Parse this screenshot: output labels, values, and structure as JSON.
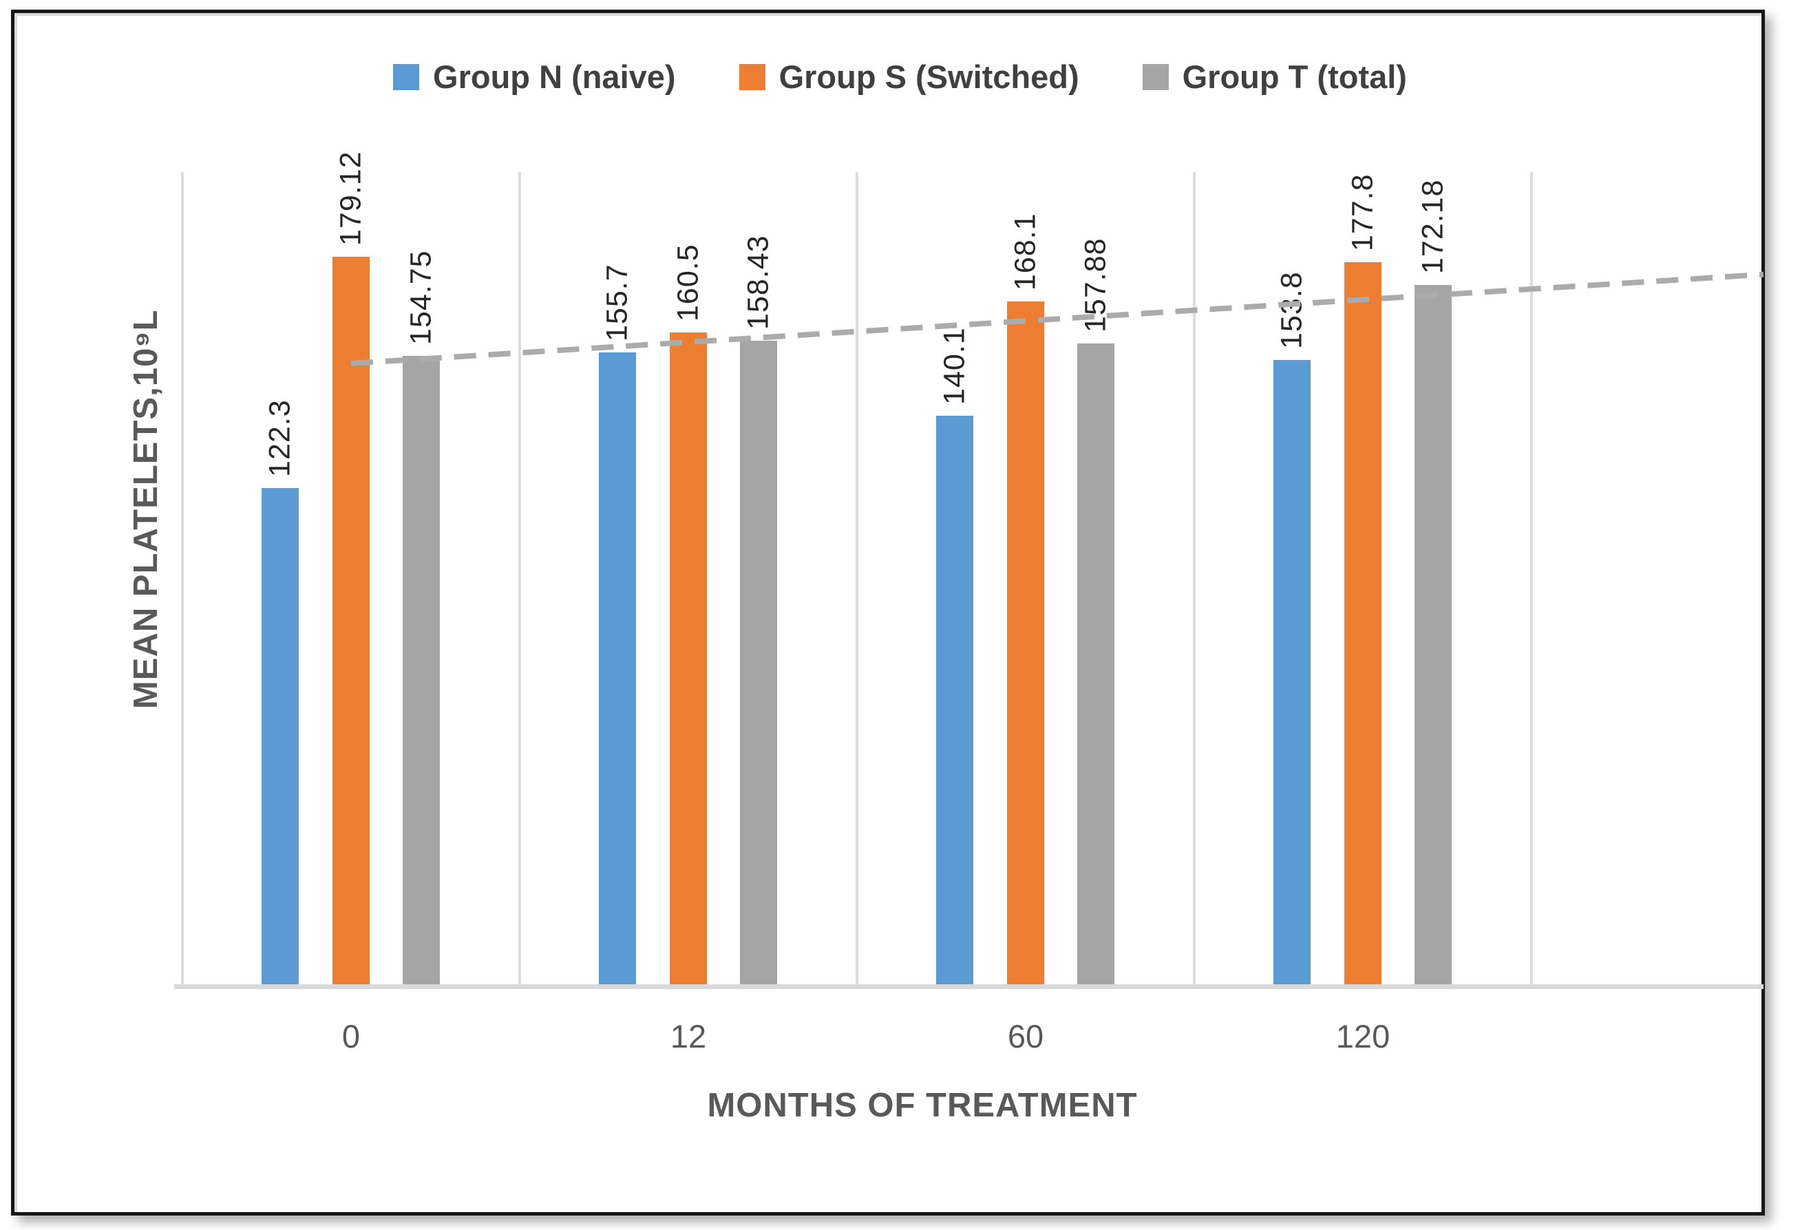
{
  "chart_data": {
    "type": "bar",
    "title": "",
    "categories": [
      "0",
      "12",
      "60",
      "120"
    ],
    "series": [
      {
        "name": "Group N (naive)",
        "color": "#5B9BD5",
        "values": [
          122.3,
          155.7,
          140.1,
          153.8
        ]
      },
      {
        "name": "Group S (Switched)",
        "color": "#ED7D31",
        "values": [
          179.12,
          160.5,
          168.1,
          177.8
        ]
      },
      {
        "name": "Group T (total)",
        "color": "#A5A5A5",
        "values": [
          154.75,
          158.43,
          157.88,
          172.18
        ]
      }
    ],
    "data_labels": {
      "rotation": "vertical-bottom-to-top",
      "shown": [
        "122.3",
        "179.12",
        "154.75",
        "155.7",
        "160.5",
        "158.43",
        "140.1",
        "168.1",
        "157.88",
        "153.8",
        "177.8",
        "172.18"
      ]
    },
    "xlabel": "MONTHS OF TREATMENT",
    "ylabel": "MEAN PLATELETS,10⁹L",
    "ylim": [
      0,
      200
    ],
    "y_axis_tick_labels_visible": false,
    "grid": "vertical-category-boundary-lines",
    "legend_position": "top",
    "trendline": {
      "type": "linear",
      "style": "dashed",
      "color": "#ABABAB",
      "value_at_first_category": 153.0,
      "value_at_right_edge": 174.9
    }
  },
  "colors": {
    "grid": "#DCDCDC",
    "axis_line": "#D9D9D9",
    "legend_text": "#404040",
    "tick_text": "#595959",
    "data_label_text": "#262626",
    "frame_border": "#161616"
  }
}
